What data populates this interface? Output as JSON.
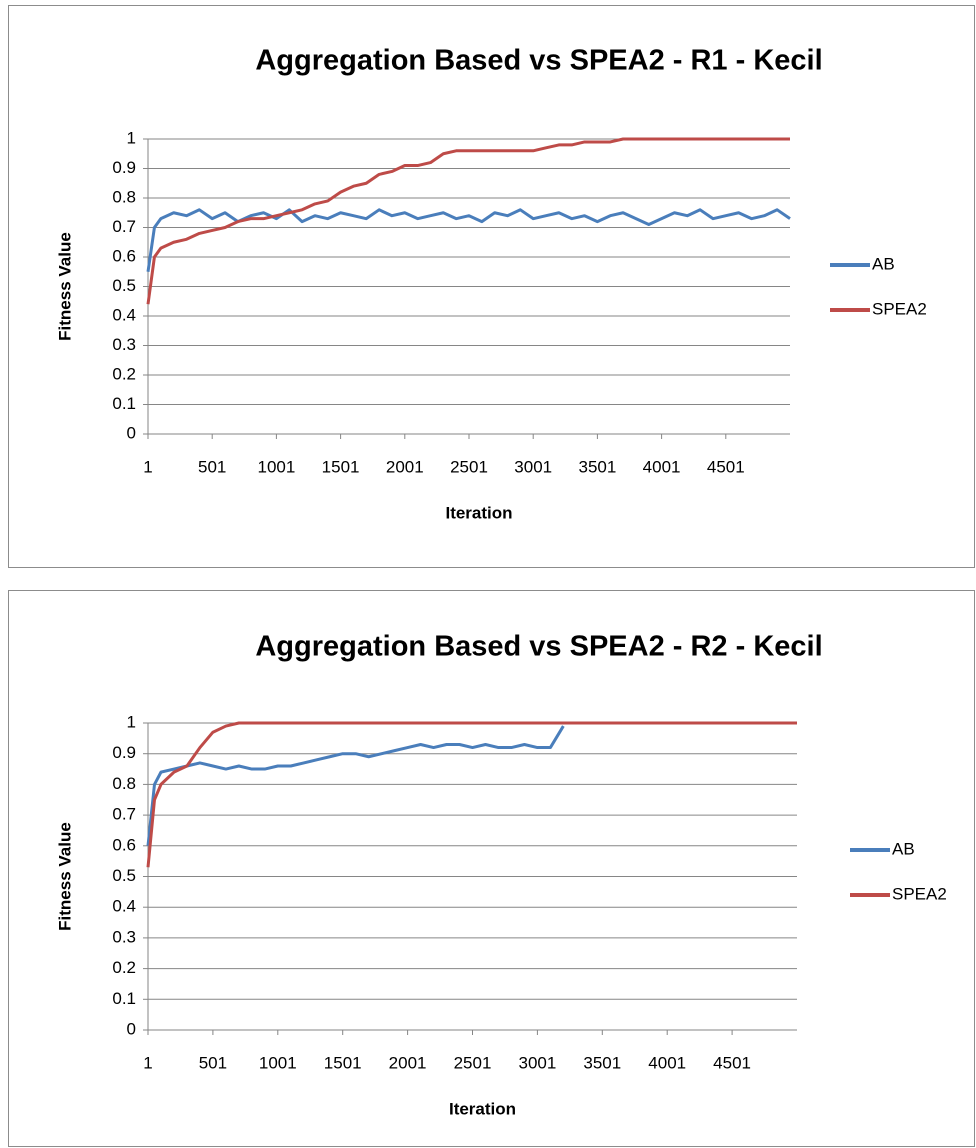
{
  "chart_data": [
    {
      "type": "line",
      "title": "Aggregation Based vs SPEA2 - R1 - Kecil",
      "x_label": "Iteration",
      "y_label": "Fitness Value",
      "x": [
        1,
        51,
        101,
        201,
        301,
        401,
        501,
        601,
        701,
        801,
        901,
        1001,
        1101,
        1201,
        1301,
        1401,
        1501,
        1601,
        1701,
        1801,
        1901,
        2001,
        2101,
        2201,
        2301,
        2401,
        2501,
        2601,
        2701,
        2801,
        2901,
        3001,
        3101,
        3201,
        3301,
        3401,
        3501,
        3601,
        3701,
        3801,
        3901,
        4001,
        4101,
        4201,
        4301,
        4401,
        4501,
        4601,
        4701,
        4801,
        4901,
        5001
      ],
      "series": [
        {
          "name": "AB",
          "color": "#4a7ebb",
          "values": [
            0.55,
            0.7,
            0.73,
            0.75,
            0.74,
            0.76,
            0.73,
            0.75,
            0.72,
            0.74,
            0.75,
            0.73,
            0.76,
            0.72,
            0.74,
            0.73,
            0.75,
            0.74,
            0.73,
            0.76,
            0.74,
            0.75,
            0.73,
            0.74,
            0.75,
            0.73,
            0.74,
            0.72,
            0.75,
            0.74,
            0.76,
            0.73,
            0.74,
            0.75,
            0.73,
            0.74,
            0.72,
            0.74,
            0.75,
            0.73,
            0.71,
            0.73,
            0.75,
            0.74,
            0.76,
            0.73,
            0.74,
            0.75,
            0.73,
            0.74,
            0.76,
            0.73
          ]
        },
        {
          "name": "SPEA2",
          "color": "#be4b48",
          "values": [
            0.44,
            0.6,
            0.63,
            0.65,
            0.66,
            0.68,
            0.69,
            0.7,
            0.72,
            0.73,
            0.73,
            0.74,
            0.75,
            0.76,
            0.78,
            0.79,
            0.82,
            0.84,
            0.85,
            0.88,
            0.89,
            0.91,
            0.91,
            0.92,
            0.95,
            0.96,
            0.96,
            0.96,
            0.96,
            0.96,
            0.96,
            0.96,
            0.97,
            0.98,
            0.98,
            0.99,
            0.99,
            0.99,
            1,
            1,
            1,
            1,
            1,
            1,
            1,
            1,
            1,
            1,
            1,
            1,
            1,
            1
          ]
        }
      ],
      "xlim": [
        1,
        5001
      ],
      "xticks": [
        1,
        501,
        1001,
        1501,
        2001,
        2501,
        3001,
        3501,
        4001,
        4501
      ],
      "ylim": [
        0,
        1
      ],
      "yticks": [
        0,
        0.1,
        0.2,
        0.3,
        0.4,
        0.5,
        0.6,
        0.7,
        0.8,
        0.9,
        1
      ],
      "grid": true,
      "legend": "right"
    },
    {
      "type": "line",
      "title": "Aggregation Based vs SPEA2 - R2 - Kecil",
      "x_label": "Iteration",
      "y_label": "Fitness Value",
      "x": [
        1,
        51,
        101,
        201,
        301,
        401,
        501,
        601,
        701,
        801,
        901,
        1001,
        1101,
        1201,
        1301,
        1401,
        1501,
        1601,
        1701,
        1801,
        1901,
        2001,
        2101,
        2201,
        2301,
        2401,
        2501,
        2601,
        2701,
        2801,
        2901,
        3001,
        3101,
        3201,
        3301,
        3401,
        3501,
        3601,
        3701,
        3801,
        3901,
        4001,
        4101,
        4201,
        4301,
        4401,
        4501,
        4601,
        4701,
        4801,
        4901,
        5001
      ],
      "series": [
        {
          "name": "AB",
          "color": "#4a7ebb",
          "values": [
            0.6,
            0.8,
            0.84,
            0.85,
            0.86,
            0.87,
            0.86,
            0.85,
            0.86,
            0.85,
            0.85,
            0.86,
            0.86,
            0.87,
            0.88,
            0.89,
            0.9,
            0.9,
            0.89,
            0.9,
            0.91,
            0.92,
            0.93,
            0.92,
            0.93,
            0.93,
            0.92,
            0.93,
            0.92,
            0.92,
            0.93,
            0.92,
            0.92,
            0.99,
            null,
            null,
            null,
            null,
            null,
            null,
            null,
            null,
            null,
            null,
            null,
            null,
            null,
            null,
            null,
            null,
            null,
            null
          ]
        },
        {
          "name": "SPEA2",
          "color": "#be4b48",
          "values": [
            0.53,
            0.75,
            0.8,
            0.84,
            0.86,
            0.92,
            0.97,
            0.99,
            1,
            1,
            1,
            1,
            1,
            1,
            1,
            1,
            1,
            1,
            1,
            1,
            1,
            1,
            1,
            1,
            1,
            1,
            1,
            1,
            1,
            1,
            1,
            1,
            1,
            1,
            1,
            1,
            1,
            1,
            1,
            1,
            1,
            1,
            1,
            1,
            1,
            1,
            1,
            1,
            1,
            1,
            1,
            1
          ]
        }
      ],
      "xlim": [
        1,
        5001
      ],
      "xticks": [
        1,
        501,
        1001,
        1501,
        2001,
        2501,
        3001,
        3501,
        4001,
        4501
      ],
      "ylim": [
        0,
        1
      ],
      "yticks": [
        0,
        0.1,
        0.2,
        0.3,
        0.4,
        0.5,
        0.6,
        0.7,
        0.8,
        0.9,
        1
      ],
      "grid": true,
      "legend": "right"
    }
  ]
}
